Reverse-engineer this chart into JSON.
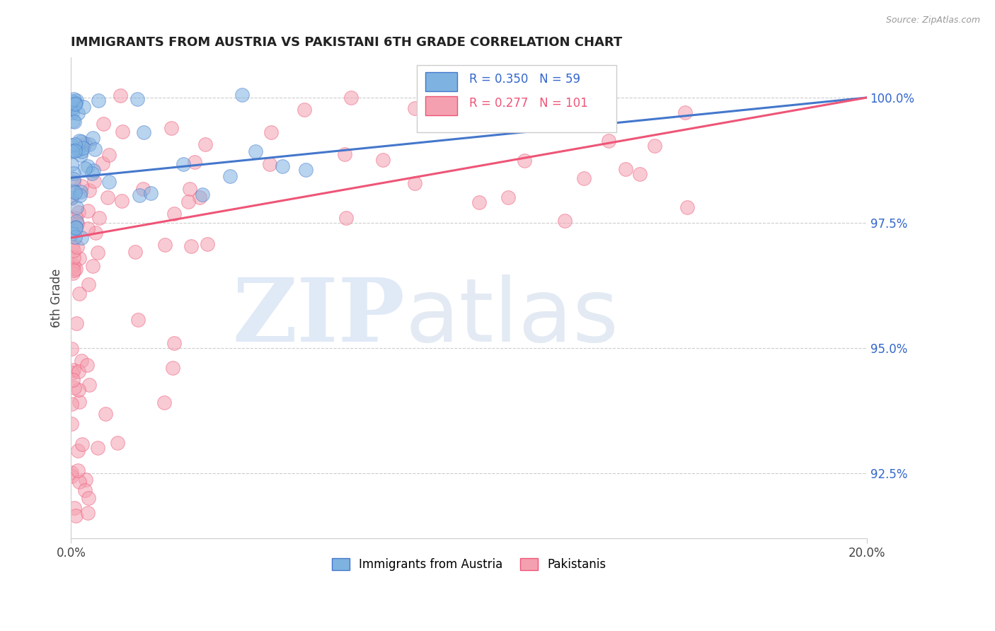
{
  "title": "IMMIGRANTS FROM AUSTRIA VS PAKISTANI 6TH GRADE CORRELATION CHART",
  "source": "Source: ZipAtlas.com",
  "ylabel": "6th Grade",
  "ylabel_right_ticks": [
    "92.5%",
    "95.0%",
    "97.5%",
    "100.0%"
  ],
  "ylabel_right_values": [
    92.5,
    95.0,
    97.5,
    100.0
  ],
  "legend_austria_R": "0.350",
  "legend_austria_N": "59",
  "legend_pakistan_R": "0.277",
  "legend_pakistan_N": "101",
  "austria_color": "#7EB2E0",
  "pakistan_color": "#F4A0B0",
  "austria_line_color": "#4477CC",
  "pakistan_line_color": "#EE5577",
  "background_color": "#FFFFFF",
  "xlim": [
    0.0,
    20.0
  ],
  "ylim": [
    91.2,
    100.8
  ],
  "dot_size": 200
}
